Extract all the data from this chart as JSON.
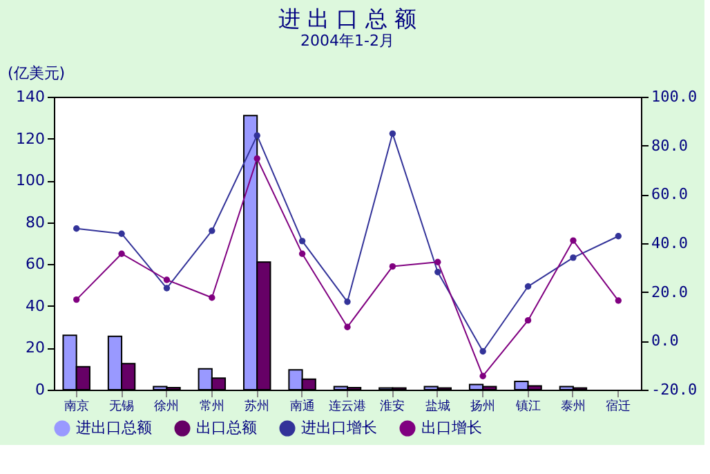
{
  "chart_data": {
    "type": "bar",
    "title": "进 出 口 总 额",
    "subtitle": "2004年1-2月",
    "ylabel": "(亿美元)",
    "categories": [
      "南京",
      "无锡",
      "徐州",
      "常州",
      "苏州",
      "南通",
      "连云港",
      "淮安",
      "盐城",
      "扬州",
      "镇江",
      "泰州",
      "宿迁"
    ],
    "series": [
      {
        "name": "进出口总额",
        "type": "bar",
        "color": "#9999ff",
        "values": [
          26,
          25.5,
          1.5,
          10,
          131,
          9.5,
          1.5,
          0.8,
          1.5,
          2.5,
          4,
          1.5,
          null
        ]
      },
      {
        "name": "出口总额",
        "type": "bar",
        "color": "#660066",
        "values": [
          11,
          12.5,
          1,
          5.5,
          61,
          5,
          1,
          0.8,
          0.8,
          1.5,
          1.8,
          0.8,
          null
        ]
      },
      {
        "name": "进出口增长",
        "type": "line",
        "axis": "y2",
        "color": "#333399",
        "values": [
          46,
          43.9,
          21.6,
          45.1,
          84.1,
          40.9,
          16,
          84.9,
          28.2,
          -4.3,
          22.3,
          34.1,
          42.9
        ]
      },
      {
        "name": "出口增长",
        "type": "line",
        "axis": "y2",
        "color": "#800080",
        "values": [
          16.9,
          35.7,
          25,
          17.7,
          74.7,
          35.7,
          5.7,
          30.5,
          32.3,
          -14.4,
          8.4,
          41.1,
          16.5
        ]
      }
    ],
    "ylim": [
      0,
      140
    ],
    "yticks": [
      0,
      20,
      40,
      60,
      80,
      100,
      120,
      140
    ],
    "y2lim": [
      -20,
      100
    ],
    "y2ticks": [
      {
        "value": -20,
        "label": "-20.0"
      },
      {
        "value": 0,
        "label": "0.0"
      },
      {
        "value": 20,
        "label": "20.0"
      },
      {
        "value": 40,
        "label": "40.0"
      },
      {
        "value": 60,
        "label": "60.0"
      },
      {
        "value": 80,
        "label": "80.0"
      },
      {
        "value": 100,
        "label": "100.0"
      }
    ],
    "marker": "circle",
    "line_style": "solid",
    "grid": false,
    "legend": "bottom"
  }
}
